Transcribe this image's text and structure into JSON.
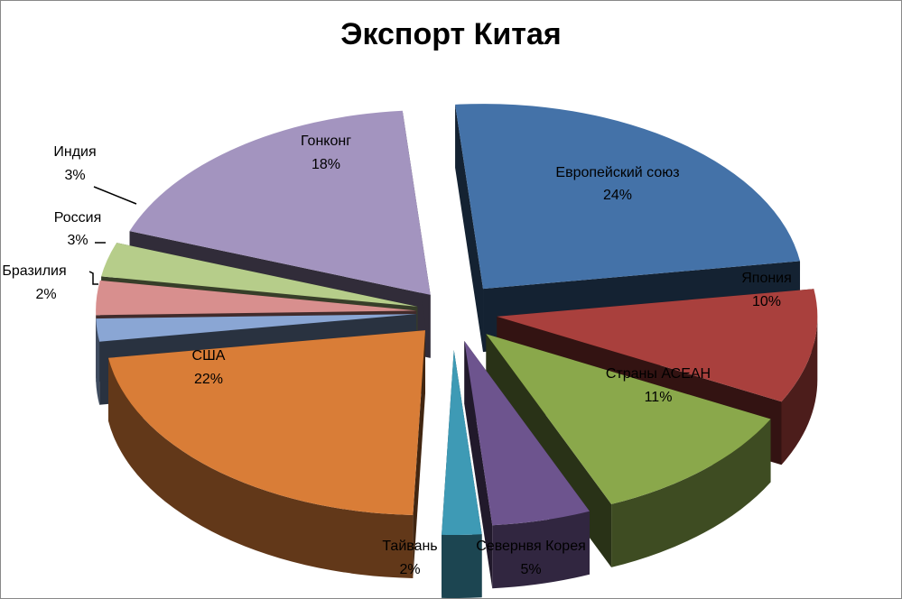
{
  "chart_data": {
    "type": "pie",
    "title": "Экспорт Китая",
    "slices": [
      {
        "name": "Европейский союз",
        "value": 24,
        "label": "24%",
        "color": "#4472A8"
      },
      {
        "name": "Япония",
        "value": 10,
        "label": "10%",
        "color": "#A9403D"
      },
      {
        "name": "Страны АСЕАН",
        "value": 11,
        "label": "11%",
        "color": "#8AA84B"
      },
      {
        "name": "Севернвя Корея",
        "value": 5,
        "label": "5%",
        "color": "#6D548E"
      },
      {
        "name": "Тайвань",
        "value": 2,
        "label": "2%",
        "color": "#3E9AB5"
      },
      {
        "name": "США",
        "value": 22,
        "label": "22%",
        "color": "#D97D37"
      },
      {
        "name": "Бразилия",
        "value": 2,
        "label": "2%",
        "color": "#8AA6D4"
      },
      {
        "name": "Россия",
        "value": 3,
        "label": "3%",
        "color": "#D88F8E"
      },
      {
        "name": "Индия",
        "value": 3,
        "label": "3%",
        "color": "#B6CD8A"
      },
      {
        "name": "Гонконг",
        "value": 18,
        "label": "18%",
        "color": "#A394BF"
      }
    ],
    "legend": "none",
    "style": "3d-exploded"
  }
}
